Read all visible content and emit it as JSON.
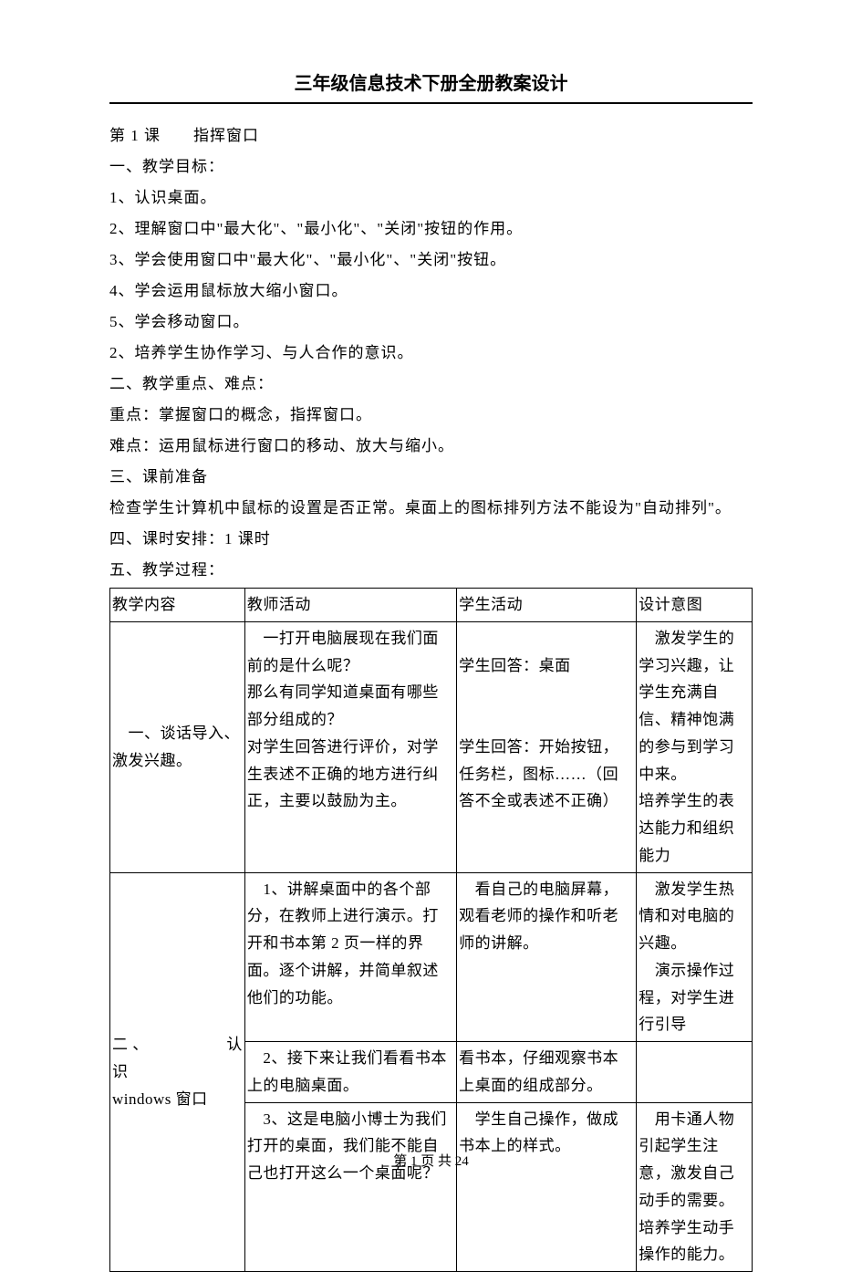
{
  "page": {
    "title": "三年级信息技术下册全册教案设计",
    "footer_prefix": "第 ",
    "footer_page": "1",
    "footer_mid": " 页 共 ",
    "footer_total": "24"
  },
  "intro": {
    "lesson_header": "第 1 课　　指挥窗口",
    "section1_title": "一、教学目标：",
    "goals": [
      "1、认识桌面。",
      "2、理解窗口中\"最大化\"、\"最小化\"、\"关闭\"按钮的作用。",
      "3、学会使用窗口中\"最大化\"、\"最小化\"、\"关闭\"按钮。",
      "4、学会运用鼠标放大缩小窗口。",
      "5、学会移动窗口。",
      "2、培养学生协作学习、与人合作的意识。"
    ],
    "section2_title": "二、教学重点、难点：",
    "emphasis": "重点：掌握窗口的概念，指挥窗口。",
    "difficulty": "难点：运用鼠标进行窗口的移动、放大与缩小。",
    "section3_title": "三、课前准备",
    "prep": "检查学生计算机中鼠标的设置是否正常。桌面上的图标排列方法不能设为\"自动排列\"。",
    "section4_title": "四、课时安排：1 课时",
    "section5_title": "五、教学过程："
  },
  "table": {
    "headers": {
      "c1": "教学内容",
      "c2": "教师活动",
      "c3": "学生活动",
      "c4": "设计意图"
    },
    "r1": {
      "c1": "　一、谈话导入、激发兴趣。",
      "c2": "　一打开电脑展现在我们面前的是什么呢？\n那么有同学知道桌面有哪些部分组成的？\n对学生回答进行评价，对学生表述不正确的地方进行纠正，主要以鼓励为主。",
      "c3": "\n学生回答：桌面\n\n\n学生回答：开始按钮，任务栏，图标……（回答不全或表述不正确）",
      "c4": "　激发学生的学习兴趣，让学生充满自信、精神饱满的参与到学习中来。\n培养学生的表达能力和组织能力"
    },
    "r2": {
      "c1_line1": "二、　　　　认",
      "c1_line2": "识",
      "c1_line3": "windows 窗口",
      "c2": "　1、讲解桌面中的各个部分，在教师上进行演示。打开和书本第 2 页一样的界面。逐个讲解，并简单叙述他们的功能。",
      "c3": "　看自己的电脑屏幕，观看老师的操作和听老师的讲解。",
      "c4": "　激发学生热情和对电脑的兴趣。\n　演示操作过程，对学生进行引导"
    },
    "r3": {
      "c2": "　2、接下来让我们看看书本上的电脑桌面。",
      "c3": "看书本，仔细观察书本上桌面的组成部分。",
      "c4": ""
    },
    "r4": {
      "c2": "　3、这是电脑小博士为我们打开的桌面，我们能不能自己也打开这么一个桌面呢？",
      "c3": "　学生自己操作，做成书本上的样式。",
      "c4": "　用卡通人物引起学生注意，激发自己动手的需要。\n培养学生动手操作的能力。"
    }
  },
  "styles": {
    "text_color": "#000000",
    "background_color": "#ffffff",
    "border_color": "#000000",
    "title_fontsize": 20,
    "body_fontsize": 17,
    "footer_fontsize": 15,
    "line_height": 2.0
  }
}
